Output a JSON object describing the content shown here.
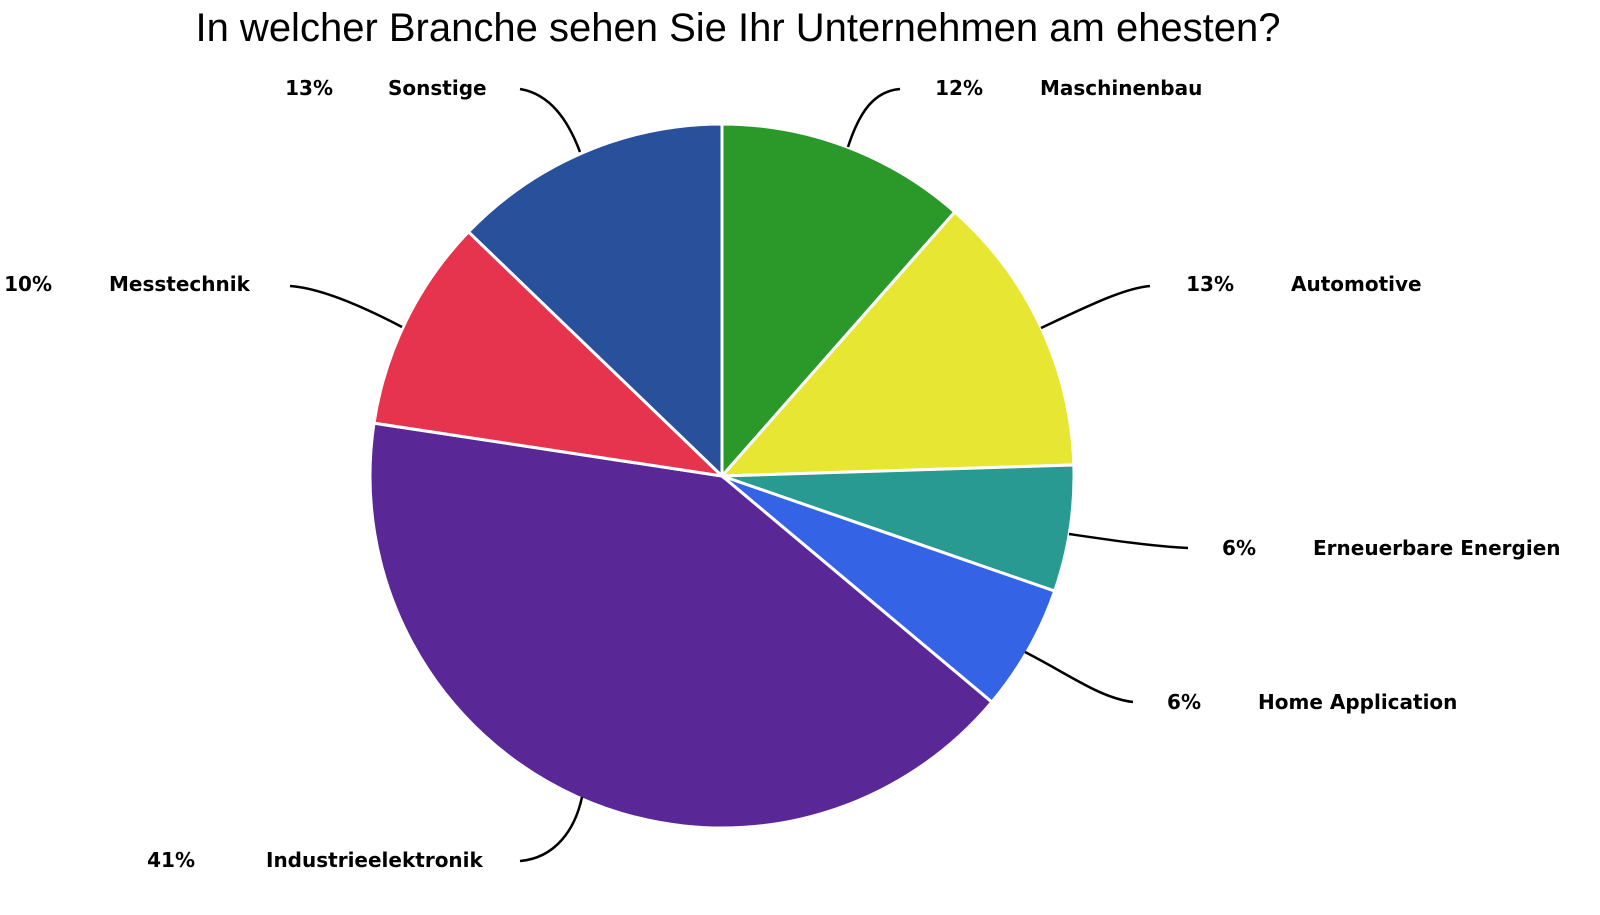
{
  "chart_data": {
    "type": "pie",
    "title": "In welcher Branche sehen Sie Ihr Unternehmen am ehesten?",
    "start_angle_deg": 0,
    "direction": "clockwise",
    "slices": [
      {
        "label": "Maschinenbau",
        "percent_label": "12%",
        "value": 11.5,
        "color": "#2a992a"
      },
      {
        "label": "Automotive",
        "percent_label": "13%",
        "value": 13.0,
        "color": "#e6e633"
      },
      {
        "label": "Erneuerbare Energien",
        "percent_label": "6%",
        "value": 5.8,
        "color": "#289a91"
      },
      {
        "label": "Home Application",
        "percent_label": "6%",
        "value": 5.8,
        "color": "#3563e6"
      },
      {
        "label": "Industrieelektronik",
        "percent_label": "41%",
        "value": 41.3,
        "color": "#5a2896"
      },
      {
        "label": "Messtechnik",
        "percent_label": "10%",
        "value": 9.8,
        "color": "#e6334e"
      },
      {
        "label": "Sonstige",
        "percent_label": "13%",
        "value": 12.8,
        "color": "#29509a"
      }
    ]
  }
}
